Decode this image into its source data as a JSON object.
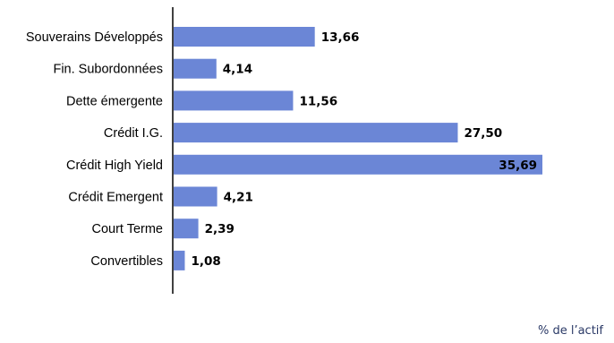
{
  "chart_data": {
    "type": "bar",
    "orientation": "horizontal",
    "categories": [
      "Souverains Développés",
      "Fin. Subordonnées",
      "Dette émergente",
      "Crédit I.G.",
      "Crédit High Yield",
      "Crédit Emergent",
      "Court Terme",
      "Convertibles"
    ],
    "values": [
      13.66,
      4.14,
      11.56,
      27.5,
      35.69,
      4.21,
      2.39,
      1.08
    ],
    "value_labels": [
      "13,66",
      "4,14",
      "11,56",
      "27,50",
      "35,69",
      "4,21",
      "2,39",
      "1,08"
    ],
    "title": "",
    "xlabel": "",
    "ylabel": "",
    "xlim": [
      0,
      35.69
    ],
    "grid": false,
    "bar_color": "#6b86d6",
    "unit_note": "% de l’actif"
  }
}
